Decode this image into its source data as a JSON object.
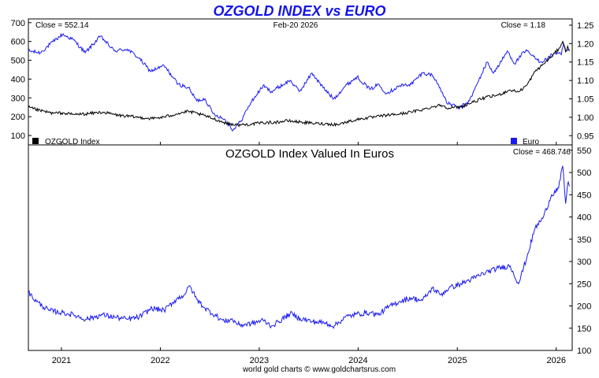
{
  "header": {
    "title": "OZGOLD INDEX vs EURO",
    "footer": "world gold charts © www.goldchartsrus.com"
  },
  "colors": {
    "title": "#1515e8",
    "index_line": "#000000",
    "euro_line": "#1a1af0",
    "frame": "#000000",
    "background": "#ffffff"
  },
  "chart_data": [
    {
      "type": "line",
      "title": "",
      "date_label": "Feb-20  2026",
      "close_left": "Close = 552.14",
      "close_right": "Close = 1.18",
      "legend": {
        "left": "OZGOLD Index",
        "right": "Euro"
      },
      "xlim": [
        "2020-09-01",
        "2026-03-01"
      ],
      "x_ticks": [
        "2021",
        "2022",
        "2023",
        "2024",
        "2025",
        "2026"
      ],
      "y_left": {
        "lim": [
          50,
          720
        ],
        "ticks": [
          100,
          200,
          300,
          400,
          500,
          600,
          700
        ]
      },
      "y_right": {
        "lim": [
          0.925,
          1.267
        ],
        "ticks": [
          0.95,
          1.0,
          1.05,
          1.1,
          1.15,
          1.2,
          1.25
        ]
      },
      "series": [
        {
          "name": "OZGOLD Index",
          "axis": "left",
          "points": [
            [
              "2020-09-01",
              250
            ],
            [
              "2020-10-15",
              232
            ],
            [
              "2020-12-01",
              218
            ],
            [
              "2021-01-01",
              220
            ],
            [
              "2021-02-15",
              212
            ],
            [
              "2021-04-01",
              215
            ],
            [
              "2021-06-01",
              224
            ],
            [
              "2021-08-01",
              207
            ],
            [
              "2021-10-01",
              198
            ],
            [
              "2021-12-01",
              190
            ],
            [
              "2022-01-15",
              198
            ],
            [
              "2022-03-01",
              215
            ],
            [
              "2022-04-15",
              228
            ],
            [
              "2022-06-01",
              211
            ],
            [
              "2022-07-15",
              190
            ],
            [
              "2022-09-01",
              165
            ],
            [
              "2022-10-15",
              156
            ],
            [
              "2022-12-01",
              160
            ],
            [
              "2023-01-15",
              168
            ],
            [
              "2023-03-01",
              170
            ],
            [
              "2023-04-15",
              178
            ],
            [
              "2023-06-01",
              172
            ],
            [
              "2023-07-15",
              165
            ],
            [
              "2023-09-01",
              162
            ],
            [
              "2023-10-15",
              158
            ],
            [
              "2023-12-01",
              176
            ],
            [
              "2024-01-15",
              190
            ],
            [
              "2024-03-01",
              198
            ],
            [
              "2024-04-15",
              208
            ],
            [
              "2024-06-01",
              214
            ],
            [
              "2024-07-15",
              225
            ],
            [
              "2024-09-01",
              240
            ],
            [
              "2024-10-01",
              252
            ],
            [
              "2024-11-01",
              262
            ],
            [
              "2024-12-01",
              246
            ],
            [
              "2025-01-15",
              252
            ],
            [
              "2025-03-01",
              278
            ],
            [
              "2025-04-15",
              302
            ],
            [
              "2025-06-01",
              315
            ],
            [
              "2025-07-15",
              342
            ],
            [
              "2025-08-15",
              332
            ],
            [
              "2025-09-15",
              368
            ],
            [
              "2025-10-15",
              440
            ],
            [
              "2025-11-15",
              480
            ],
            [
              "2025-12-15",
              520
            ],
            [
              "2026-01-10",
              560
            ],
            [
              "2026-01-25",
              600
            ],
            [
              "2026-02-05",
              545
            ],
            [
              "2026-02-12",
              575
            ],
            [
              "2026-02-20",
              552
            ]
          ]
        },
        {
          "name": "Euro",
          "axis": "right",
          "points": [
            [
              "2020-09-01",
              1.18
            ],
            [
              "2020-10-15",
              1.175
            ],
            [
              "2020-12-01",
              1.205
            ],
            [
              "2021-01-05",
              1.225
            ],
            [
              "2021-02-15",
              1.21
            ],
            [
              "2021-03-30",
              1.175
            ],
            [
              "2021-05-25",
              1.22
            ],
            [
              "2021-07-15",
              1.18
            ],
            [
              "2021-09-01",
              1.185
            ],
            [
              "2021-10-15",
              1.16
            ],
            [
              "2021-11-25",
              1.125
            ],
            [
              "2022-01-15",
              1.14
            ],
            [
              "2022-03-07",
              1.09
            ],
            [
              "2022-04-15",
              1.08
            ],
            [
              "2022-05-15",
              1.045
            ],
            [
              "2022-06-15",
              1.05
            ],
            [
              "2022-07-15",
              1.01
            ],
            [
              "2022-08-25",
              0.995
            ],
            [
              "2022-09-27",
              0.965
            ],
            [
              "2022-10-25",
              0.99
            ],
            [
              "2022-12-01",
              1.04
            ],
            [
              "2023-01-15",
              1.085
            ],
            [
              "2023-02-15",
              1.07
            ],
            [
              "2023-04-25",
              1.1
            ],
            [
              "2023-05-30",
              1.07
            ],
            [
              "2023-07-15",
              1.12
            ],
            [
              "2023-08-25",
              1.08
            ],
            [
              "2023-10-03",
              1.05
            ],
            [
              "2023-11-15",
              1.085
            ],
            [
              "2023-12-28",
              1.11
            ],
            [
              "2024-02-15",
              1.075
            ],
            [
              "2024-03-15",
              1.09
            ],
            [
              "2024-04-15",
              1.065
            ],
            [
              "2024-06-01",
              1.085
            ],
            [
              "2024-07-15",
              1.09
            ],
            [
              "2024-08-25",
              1.12
            ],
            [
              "2024-09-30",
              1.115
            ],
            [
              "2024-10-30",
              1.08
            ],
            [
              "2024-11-22",
              1.04
            ],
            [
              "2025-01-10",
              1.025
            ],
            [
              "2025-02-15",
              1.045
            ],
            [
              "2025-03-15",
              1.09
            ],
            [
              "2025-04-21",
              1.15
            ],
            [
              "2025-05-15",
              1.12
            ],
            [
              "2025-06-15",
              1.155
            ],
            [
              "2025-07-05",
              1.18
            ],
            [
              "2025-08-01",
              1.145
            ],
            [
              "2025-08-25",
              1.17
            ],
            [
              "2025-09-15",
              1.18
            ],
            [
              "2025-10-15",
              1.16
            ],
            [
              "2025-11-05",
              1.15
            ],
            [
              "2025-12-01",
              1.16
            ],
            [
              "2025-12-25",
              1.175
            ],
            [
              "2026-01-20",
              1.17
            ],
            [
              "2026-01-28",
              1.2
            ],
            [
              "2026-02-05",
              1.18
            ],
            [
              "2026-02-20",
              1.18
            ]
          ]
        }
      ]
    },
    {
      "type": "line",
      "title": "OZGOLD Index Valued In Euros",
      "close_right": "Close = 468.746",
      "xlim": [
        "2020-09-01",
        "2026-03-01"
      ],
      "x_ticks": [
        "2021",
        "2022",
        "2023",
        "2024",
        "2025",
        "2026"
      ],
      "y_right": {
        "lim": [
          100,
          562
        ],
        "ticks": [
          100,
          150,
          200,
          250,
          300,
          350,
          400,
          450,
          500,
          550
        ]
      },
      "series": [
        {
          "name": "",
          "axis": "right",
          "points": [
            [
              "2020-09-01",
              230
            ],
            [
              "2020-10-01",
              210
            ],
            [
              "2020-11-15",
              190
            ],
            [
              "2021-01-01",
              185
            ],
            [
              "2021-02-15",
              180
            ],
            [
              "2021-04-01",
              170
            ],
            [
              "2021-06-01",
              180
            ],
            [
              "2021-07-15",
              175
            ],
            [
              "2021-09-01",
              170
            ],
            [
              "2021-10-15",
              175
            ],
            [
              "2021-12-01",
              195
            ],
            [
              "2022-01-15",
              190
            ],
            [
              "2022-03-01",
              215
            ],
            [
              "2022-03-30",
              225
            ],
            [
              "2022-04-20",
              245
            ],
            [
              "2022-05-15",
              215
            ],
            [
              "2022-06-15",
              195
            ],
            [
              "2022-08-01",
              175
            ],
            [
              "2022-08-25",
              165
            ],
            [
              "2022-09-20",
              170
            ],
            [
              "2022-10-20",
              157
            ],
            [
              "2022-12-01",
              160
            ],
            [
              "2023-01-15",
              168
            ],
            [
              "2023-02-15",
              155
            ],
            [
              "2023-03-15",
              165
            ],
            [
              "2023-04-25",
              183
            ],
            [
              "2023-06-01",
              172
            ],
            [
              "2023-07-15",
              165
            ],
            [
              "2023-09-01",
              162
            ],
            [
              "2023-10-05",
              155
            ],
            [
              "2023-11-15",
              175
            ],
            [
              "2023-12-28",
              182
            ],
            [
              "2024-02-15",
              185
            ],
            [
              "2024-03-15",
              180
            ],
            [
              "2024-04-15",
              195
            ],
            [
              "2024-06-01",
              210
            ],
            [
              "2024-07-15",
              218
            ],
            [
              "2024-08-25",
              212
            ],
            [
              "2024-10-01",
              240
            ],
            [
              "2024-11-01",
              225
            ],
            [
              "2024-12-01",
              240
            ],
            [
              "2025-01-15",
              250
            ],
            [
              "2025-03-01",
              262
            ],
            [
              "2025-04-15",
              275
            ],
            [
              "2025-06-01",
              285
            ],
            [
              "2025-07-15",
              290
            ],
            [
              "2025-08-15",
              250
            ],
            [
              "2025-09-15",
              310
            ],
            [
              "2025-10-15",
              375
            ],
            [
              "2025-11-15",
              400
            ],
            [
              "2025-12-15",
              450
            ],
            [
              "2026-01-10",
              465
            ],
            [
              "2026-01-25",
              515
            ],
            [
              "2026-02-05",
              430
            ],
            [
              "2026-02-12",
              475
            ],
            [
              "2026-02-20",
              469
            ]
          ]
        }
      ]
    }
  ]
}
